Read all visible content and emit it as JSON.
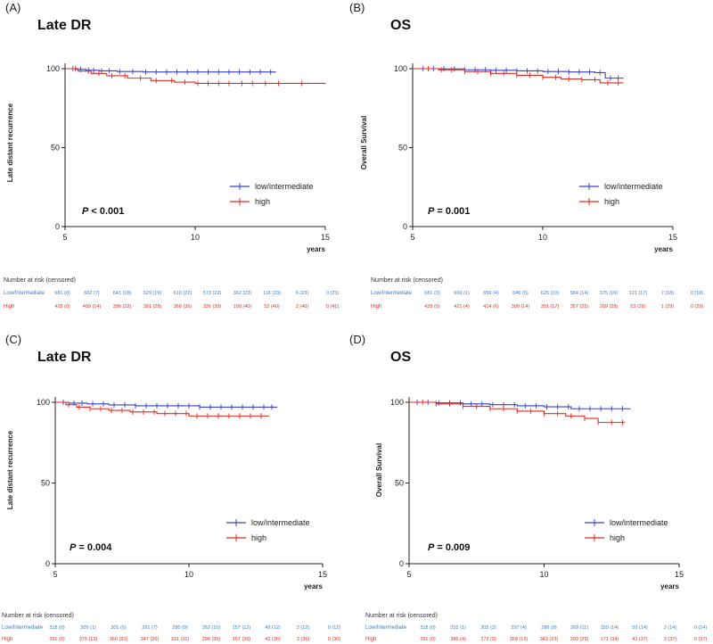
{
  "colors": {
    "low": "#3a3fc4",
    "high": "#e02a22",
    "risk_low": "#3a7dc4",
    "risk_high": "#d9302a",
    "axis": "#222222"
  },
  "chart_data": [
    {
      "type": "line",
      "panel": "(A)",
      "title": "Late DR",
      "ylabel": "Late distant recurrence",
      "xlabel": "years",
      "xlim": [
        5,
        15
      ],
      "ylim": [
        0,
        100
      ],
      "xticks": [
        5,
        10,
        15
      ],
      "yticks": [
        0,
        50,
        100
      ],
      "legend": [
        "low/intermediate",
        "high"
      ],
      "legend_position": "lower-right",
      "p_label": "P",
      "p_value": "< 0.001",
      "series": [
        {
          "name": "low/intermediate",
          "color": "low",
          "x": [
            5,
            5.4,
            5.8,
            6.3,
            7.0,
            8.0,
            13.1
          ],
          "y": [
            100,
            99.6,
            99.0,
            98.6,
            98.2,
            97.9,
            97.9
          ],
          "censor": [
            5.3,
            5.6,
            5.9,
            6.1,
            6.4,
            6.7,
            7.1,
            7.6,
            8.1,
            8.5,
            8.9,
            9.3,
            9.7,
            10.1,
            10.5,
            10.9,
            11.3,
            11.7,
            12.1,
            12.5,
            12.9
          ]
        },
        {
          "name": "high",
          "color": "high",
          "x": [
            5,
            5.5,
            6.0,
            6.6,
            7.4,
            8.3,
            9.2,
            10.0,
            15.0
          ],
          "y": [
            100,
            98.5,
            97.0,
            95.5,
            94.0,
            92.5,
            91.5,
            90.7,
            90.3
          ],
          "censor": [
            5.4,
            5.9,
            6.3,
            6.8,
            7.3,
            7.9,
            8.5,
            9.1,
            9.6,
            10.1,
            10.5,
            10.9,
            11.3,
            11.8,
            12.2,
            12.7,
            13.2,
            14.1
          ]
        }
      ],
      "risk_table": {
        "header": "Number at risk (censored)",
        "rows": [
          {
            "group": "Low/Intermediate",
            "color": "risk_low",
            "values": [
              "681 (0)",
              "662 (7)",
              "641 (18)",
              "629 (19)",
              "610 (22)",
              "573 (22)",
              "362 (23)",
              "116 (23)",
              "6 (23)",
              "0 (23)"
            ]
          },
          {
            "group": "High",
            "color": "risk_high",
            "values": [
              "428 (0)",
              "409 (14)",
              "396 (22)",
              "381 (28)",
              "368 (36)",
              "336 (39)",
              "199 (40)",
              "52 (40)",
              "2 (40)",
              "0 (41)"
            ]
          }
        ]
      }
    },
    {
      "type": "line",
      "panel": "(B)",
      "title": "OS",
      "ylabel": "Overall Survival",
      "xlabel": "years",
      "xlim": [
        5,
        15
      ],
      "ylim": [
        0,
        100
      ],
      "xticks": [
        5,
        10,
        15
      ],
      "yticks": [
        0,
        50,
        100
      ],
      "legend": [
        "low/intermediate",
        "high"
      ],
      "legend_position": "lower-right",
      "p_label": "P",
      "p_value": "= 0.001",
      "series": [
        {
          "name": "low/intermediate",
          "color": "low",
          "x": [
            5,
            6.0,
            7.0,
            8.0,
            9.0,
            10.0,
            11.0,
            12.0,
            12.4,
            13.1
          ],
          "y": [
            100,
            99.8,
            99.3,
            99.0,
            98.6,
            98.2,
            97.9,
            97.5,
            94.0,
            94.0
          ],
          "censor": [
            5.4,
            5.8,
            6.2,
            6.6,
            7.0,
            7.4,
            7.8,
            8.2,
            8.6,
            9.0,
            9.4,
            9.8,
            10.2,
            10.6,
            11.0,
            11.4,
            11.8,
            12.2,
            12.6,
            12.9
          ]
        },
        {
          "name": "high",
          "color": "high",
          "x": [
            5,
            6.0,
            7.0,
            8.0,
            9.0,
            10.0,
            10.7,
            11.5,
            12.2,
            13.1
          ],
          "y": [
            100,
            99.3,
            98.2,
            97.0,
            95.8,
            94.5,
            93.5,
            93.0,
            91.0,
            91.0
          ],
          "censor": [
            5.6,
            6.1,
            6.5,
            7.0,
            7.5,
            8.0,
            8.5,
            9.0,
            9.5,
            10.0,
            10.5,
            11.0,
            11.5,
            12.0,
            12.5,
            12.9
          ]
        }
      ],
      "risk_table": {
        "header": "Number at risk (censored)",
        "rows": [
          {
            "group": "Low/Intermediate",
            "color": "risk_low",
            "values": [
              "681 (0)",
              "669 (1)",
              "656 (4)",
              "646 (5)",
              "625 (10)",
              "584 (14)",
              "375 (16)",
              "121 (17)",
              "7 (18)",
              "0 (18)"
            ]
          },
          {
            "group": "High",
            "color": "risk_high",
            "values": [
              "428 (0)",
              "421 (4)",
              "414 (6)",
              "399 (14)",
              "391 (17)",
              "357 (25)",
              "209 (28)",
              "53 (28)",
              "1 (29)",
              "0 (29)"
            ]
          }
        ]
      }
    },
    {
      "type": "line",
      "panel": "(C)",
      "title": "Late DR",
      "ylabel": "Late distant recurrence",
      "xlabel": "years",
      "xlim": [
        5,
        15
      ],
      "ylim": [
        0,
        100
      ],
      "xticks": [
        5,
        10,
        15
      ],
      "yticks": [
        0,
        50,
        100
      ],
      "legend": [
        "low/intermediate",
        "high"
      ],
      "legend_position": "lower-right",
      "p_label": "P",
      "p_value": "= 0.004",
      "series": [
        {
          "name": "low/intermediate",
          "color": "low",
          "x": [
            5,
            5.5,
            6.2,
            7.0,
            8.0,
            10.4,
            13.3
          ],
          "y": [
            100,
            99.5,
            99.0,
            98.4,
            97.8,
            97.0,
            97.0
          ],
          "censor": [
            5.3,
            5.7,
            6.0,
            6.4,
            6.8,
            7.2,
            7.6,
            8.0,
            8.4,
            8.8,
            9.2,
            9.6,
            10.0,
            10.4,
            10.8,
            11.2,
            11.6,
            12.0,
            12.4,
            12.8,
            13.1
          ]
        },
        {
          "name": "high",
          "color": "high",
          "x": [
            5,
            5.4,
            5.8,
            6.3,
            7.0,
            7.8,
            8.8,
            10.0,
            13.0
          ],
          "y": [
            100,
            98.5,
            97.0,
            96.0,
            95.0,
            94.0,
            93.0,
            91.5,
            91.5
          ],
          "censor": [
            5.5,
            5.9,
            6.3,
            6.7,
            7.1,
            7.5,
            7.9,
            8.3,
            8.7,
            9.1,
            9.5,
            9.9,
            10.3,
            10.7,
            11.1,
            11.5,
            11.9,
            12.3,
            12.7
          ]
        }
      ],
      "risk_table": {
        "header": "Number at risk (censored)",
        "rows": [
          {
            "group": "Low/Intermediate",
            "color": "risk_low",
            "values": [
              "318 (0)",
              "309 (1)",
              "301 (6)",
              "291 (7)",
              "280 (9)",
              "262 (10)",
              "157 (12)",
              "49 (12)",
              "2 (12)",
              "0 (12)"
            ]
          },
          {
            "group": "High",
            "color": "risk_high",
            "values": [
              "391 (0)",
              "375 (13)",
              "360 (20)",
              "347 (26)",
              "331 (31)",
              "298 (35)",
              "167 (36)",
              "42 (36)",
              "3 (36)",
              "0 (36)"
            ]
          }
        ]
      }
    },
    {
      "type": "line",
      "panel": "(D)",
      "title": "OS",
      "ylabel": "Overall Survival",
      "xlabel": "years",
      "xlim": [
        5,
        15
      ],
      "ylim": [
        0,
        100
      ],
      "xticks": [
        5,
        10,
        15
      ],
      "yticks": [
        0,
        50,
        100
      ],
      "legend": [
        "low/intermediate",
        "high"
      ],
      "legend_position": "lower-right",
      "p_label": "P",
      "p_value": "= 0.009",
      "series": [
        {
          "name": "low/intermediate",
          "color": "low",
          "x": [
            5,
            6.0,
            7.0,
            8.0,
            9.0,
            10.0,
            11.0,
            13.2
          ],
          "y": [
            100,
            99.6,
            99.0,
            98.5,
            97.8,
            97.2,
            96.0,
            96.0
          ],
          "censor": [
            5.3,
            5.7,
            6.1,
            6.5,
            6.9,
            7.3,
            7.7,
            8.1,
            8.5,
            8.9,
            9.3,
            9.7,
            10.1,
            10.5,
            10.9,
            11.3,
            11.7,
            12.1,
            12.5,
            12.9
          ]
        },
        {
          "name": "high",
          "color": "high",
          "x": [
            5,
            6.0,
            7.0,
            8.0,
            9.0,
            10.0,
            10.8,
            11.5,
            12.0,
            13.0
          ],
          "y": [
            100,
            99.0,
            97.5,
            96.0,
            94.5,
            93.0,
            91.5,
            90.0,
            87.5,
            87.5
          ],
          "censor": [
            5.5,
            6.0,
            6.5,
            7.0,
            7.5,
            8.0,
            8.5,
            9.0,
            9.5,
            10.0,
            10.5,
            11.0,
            11.5,
            12.0,
            12.5,
            12.9
          ]
        }
      ],
      "risk_table": {
        "header": "Number at risk (censored)",
        "rows": [
          {
            "group": "Low/Intermediate",
            "color": "risk_low",
            "values": [
              "318 (0)",
              "310 (1)",
              "305 (3)",
              "297 (4)",
              "286 (9)",
              "268 (11)",
              "159 (14)",
              "50 (14)",
              "2 (14)",
              "0 (14)"
            ]
          },
          {
            "group": "High",
            "color": "risk_high",
            "values": [
              "391 (0)",
              "386 (4)",
              "373 (9)",
              "358 (19)",
              "343 (23)",
              "309 (29)",
              "171 (34)",
              "42 (37)",
              "3 (37)",
              "0 (37)"
            ]
          }
        ]
      }
    }
  ]
}
